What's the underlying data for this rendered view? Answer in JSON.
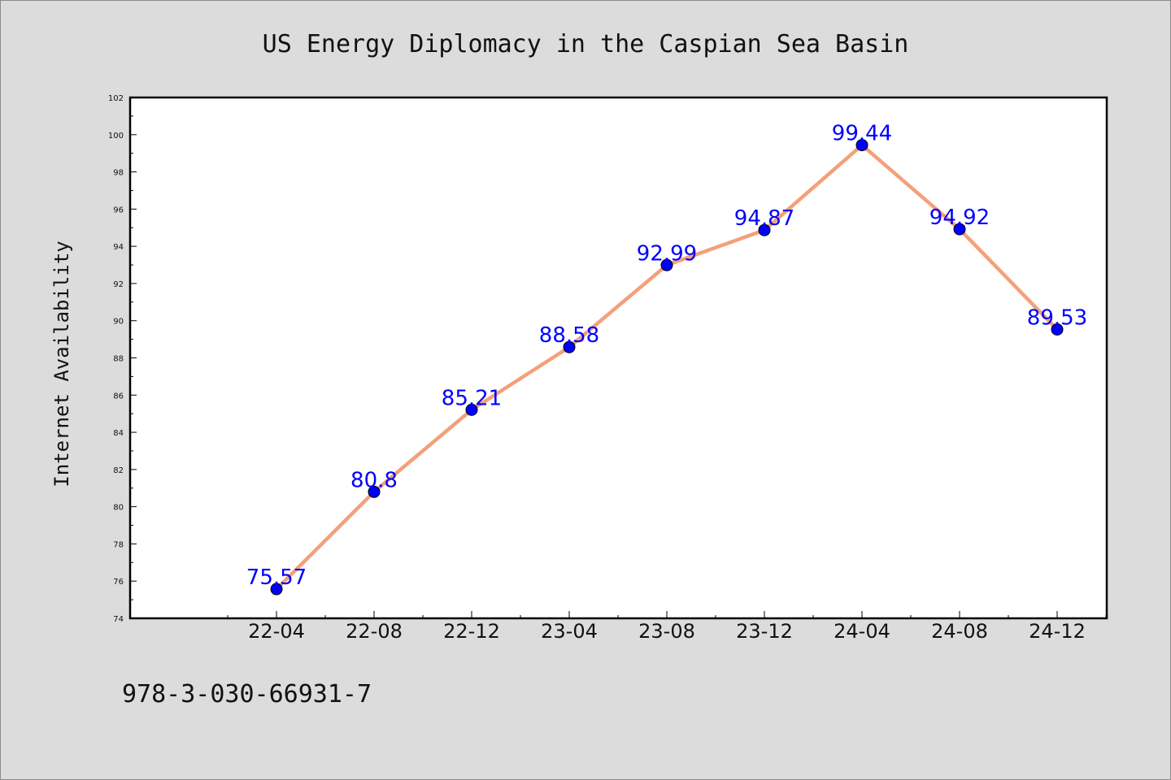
{
  "chart_data": {
    "type": "line",
    "title": "US Energy Diplomacy in the Caspian Sea Basin",
    "xlabel": "",
    "ylabel": "Internet Availability",
    "categories": [
      "22-04",
      "22-08",
      "22-12",
      "23-04",
      "23-08",
      "23-12",
      "24-04",
      "24-08",
      "24-12"
    ],
    "series": [
      {
        "values": [
          75.57,
          80.8,
          85.21,
          88.58,
          92.99,
          94.87,
          99.44,
          94.92,
          89.53
        ],
        "labels": [
          "75.57",
          "80.8",
          "85.21",
          "88.58",
          "92.99",
          "94.87",
          "99.44",
          "94.92",
          "89.53"
        ]
      }
    ],
    "ylim": [
      74,
      102
    ],
    "yticks": [
      "74",
      "76",
      "78",
      "80",
      "82",
      "84",
      "86",
      "88",
      "90",
      "92",
      "94",
      "96",
      "98",
      "100",
      "102"
    ],
    "grid": false,
    "legend": "none"
  },
  "footer": {
    "isbn": "978-3-030-66931-7"
  },
  "colors": {
    "background": "#dcdcdc",
    "plot_area": "#ffffff",
    "line": "#f4a07a",
    "marker": "#0000ff",
    "data_label": "#0000ff"
  }
}
